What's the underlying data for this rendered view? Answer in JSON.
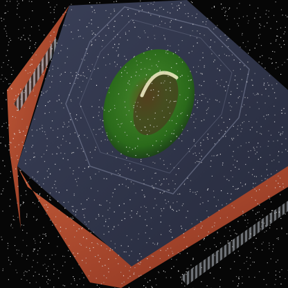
{
  "image": {
    "subject": "microchip-with-green-lens",
    "colors": {
      "background": "#060606",
      "chip_body": "#2a2f45",
      "chip_edge": "#b84a30",
      "lens": "#2f7a22",
      "lens_core": "#5a4020",
      "pins": "#9aa0a8"
    }
  }
}
